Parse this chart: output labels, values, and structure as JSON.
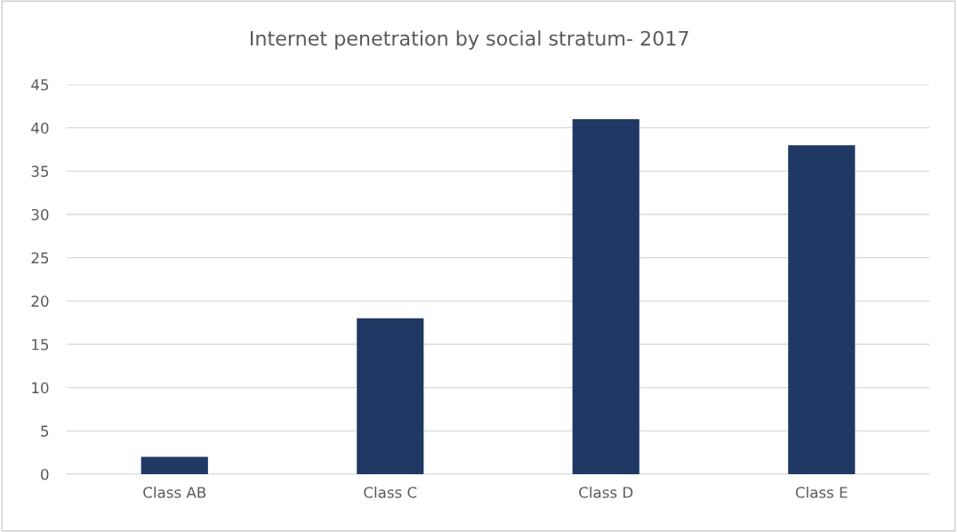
{
  "chart_data": {
    "type": "bar",
    "title": "Internet penetration by social stratum- 2017",
    "categories": [
      "Class AB",
      "Class C",
      "Class D",
      "Class E"
    ],
    "values": [
      2,
      18,
      41,
      38
    ],
    "color": "#203864",
    "ylim": [
      0,
      45
    ],
    "yticks": [
      0,
      5,
      10,
      15,
      20,
      25,
      30,
      35,
      40,
      45
    ],
    "grid": "y"
  }
}
